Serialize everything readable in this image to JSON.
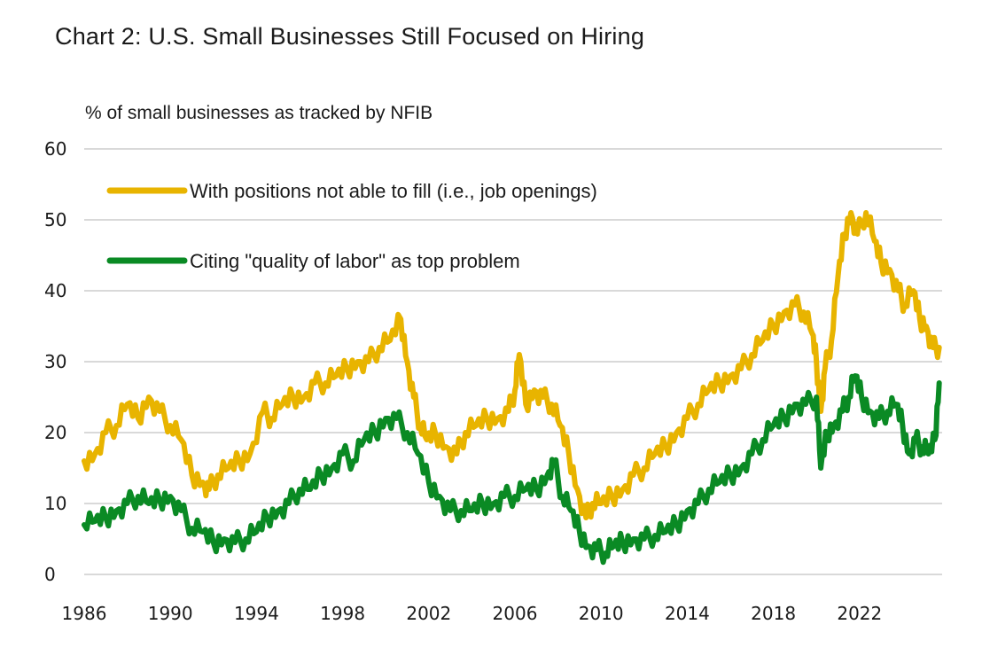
{
  "chart_data": {
    "type": "line",
    "title": "Chart 2: U.S. Small Businesses Still Focused on Hiring",
    "ylabel": "% of small businesses as tracked by NFIB",
    "xlabel": "",
    "ylim": [
      0,
      60
    ],
    "xlim": [
      1986,
      2025.8
    ],
    "yticks": [
      "0",
      "10",
      "20",
      "30",
      "40",
      "50",
      "60"
    ],
    "ytick_values": [
      0,
      10,
      20,
      30,
      40,
      50,
      60
    ],
    "xticks": [
      "1986",
      "1990",
      "1994",
      "1998",
      "2002",
      "2006",
      "2010",
      "2014",
      "2018",
      "2022"
    ],
    "xtick_values": [
      1986,
      1990,
      1994,
      1998,
      2002,
      2006,
      2010,
      2014,
      2018,
      2022
    ],
    "grid": true,
    "legend_position": "top-left",
    "series": [
      {
        "name": "With positions not able to fill (i.e., job openings)",
        "color": "#E8B400",
        "points": [
          [
            1986.0,
            16
          ],
          [
            1986.5,
            17
          ],
          [
            1987.0,
            20
          ],
          [
            1987.5,
            21
          ],
          [
            1988.0,
            24
          ],
          [
            1988.5,
            22
          ],
          [
            1989.0,
            25
          ],
          [
            1989.5,
            23
          ],
          [
            1990.0,
            21
          ],
          [
            1990.5,
            19
          ],
          [
            1991.0,
            14
          ],
          [
            1991.5,
            13
          ],
          [
            1991.8,
            12
          ],
          [
            1992.2,
            14
          ],
          [
            1992.7,
            15
          ],
          [
            1993.2,
            16
          ],
          [
            1993.7,
            17
          ],
          [
            1994.3,
            23
          ],
          [
            1994.7,
            22
          ],
          [
            1995.2,
            24
          ],
          [
            1995.7,
            25
          ],
          [
            1996.2,
            25
          ],
          [
            1996.7,
            27
          ],
          [
            1997.2,
            27
          ],
          [
            1997.7,
            28
          ],
          [
            1998.2,
            29
          ],
          [
            1998.7,
            30
          ],
          [
            1999.2,
            30
          ],
          [
            1999.7,
            32
          ],
          [
            2000.2,
            33
          ],
          [
            2000.7,
            36
          ],
          [
            2001.0,
            30
          ],
          [
            2001.3,
            25
          ],
          [
            2001.6,
            21
          ],
          [
            2001.9,
            19
          ],
          [
            2002.3,
            20
          ],
          [
            2002.8,
            18
          ],
          [
            2003.3,
            17
          ],
          [
            2003.7,
            20
          ],
          [
            2004.2,
            21
          ],
          [
            2004.7,
            22
          ],
          [
            2005.2,
            22
          ],
          [
            2005.7,
            23
          ],
          [
            2006.0,
            26
          ],
          [
            2006.2,
            31
          ],
          [
            2006.5,
            24
          ],
          [
            2006.9,
            26
          ],
          [
            2007.3,
            25
          ],
          [
            2007.7,
            24
          ],
          [
            2008.1,
            21
          ],
          [
            2008.5,
            17
          ],
          [
            2008.9,
            12
          ],
          [
            2009.3,
            8
          ],
          [
            2009.6,
            10
          ],
          [
            2010.0,
            10
          ],
          [
            2010.5,
            11
          ],
          [
            2011.0,
            12
          ],
          [
            2011.5,
            14
          ],
          [
            2012.0,
            15
          ],
          [
            2012.5,
            17
          ],
          [
            2013.0,
            18
          ],
          [
            2013.5,
            20
          ],
          [
            2014.0,
            22
          ],
          [
            2014.5,
            24
          ],
          [
            2015.0,
            26
          ],
          [
            2015.5,
            27
          ],
          [
            2016.0,
            28
          ],
          [
            2016.5,
            29
          ],
          [
            2017.0,
            31
          ],
          [
            2017.5,
            33
          ],
          [
            2018.0,
            35
          ],
          [
            2018.5,
            37
          ],
          [
            2019.0,
            38
          ],
          [
            2019.4,
            37
          ],
          [
            2019.8,
            34
          ],
          [
            2020.0,
            30
          ],
          [
            2020.2,
            23
          ],
          [
            2020.4,
            29
          ],
          [
            2020.7,
            33
          ],
          [
            2021.0,
            42
          ],
          [
            2021.3,
            48
          ],
          [
            2021.6,
            51
          ],
          [
            2021.9,
            48
          ],
          [
            2022.3,
            51
          ],
          [
            2022.7,
            47
          ],
          [
            2023.0,
            44
          ],
          [
            2023.4,
            43
          ],
          [
            2023.8,
            40
          ],
          [
            2024.1,
            38
          ],
          [
            2024.5,
            40
          ],
          [
            2024.8,
            36
          ],
          [
            2025.1,
            35
          ],
          [
            2025.4,
            32
          ],
          [
            2025.7,
            32
          ]
        ]
      },
      {
        "name": "Citing \"quality of labor\" as top problem",
        "color": "#0A8A24",
        "points": [
          [
            1986.0,
            7
          ],
          [
            1986.5,
            7.5
          ],
          [
            1987.0,
            8
          ],
          [
            1987.5,
            9
          ],
          [
            1988.0,
            10
          ],
          [
            1988.5,
            11
          ],
          [
            1989.0,
            10
          ],
          [
            1989.5,
            10.5
          ],
          [
            1990.0,
            11
          ],
          [
            1990.5,
            9
          ],
          [
            1991.0,
            6.5
          ],
          [
            1991.5,
            6
          ],
          [
            1992.0,
            4.5
          ],
          [
            1992.5,
            5
          ],
          [
            1993.0,
            4.5
          ],
          [
            1993.5,
            5
          ],
          [
            1994.0,
            6
          ],
          [
            1994.5,
            8
          ],
          [
            1995.0,
            9
          ],
          [
            1995.5,
            10
          ],
          [
            1996.0,
            12
          ],
          [
            1996.5,
            12
          ],
          [
            1997.0,
            14
          ],
          [
            1997.5,
            15
          ],
          [
            1998.0,
            17
          ],
          [
            1998.5,
            16
          ],
          [
            1999.0,
            19
          ],
          [
            1999.5,
            20
          ],
          [
            2000.0,
            22
          ],
          [
            2000.5,
            22
          ],
          [
            2001.0,
            20
          ],
          [
            2001.5,
            17
          ],
          [
            2002.0,
            13
          ],
          [
            2002.5,
            11
          ],
          [
            2003.0,
            9
          ],
          [
            2003.5,
            9
          ],
          [
            2004.0,
            9
          ],
          [
            2004.5,
            10
          ],
          [
            2005.0,
            10
          ],
          [
            2005.5,
            11
          ],
          [
            2006.0,
            11
          ],
          [
            2006.5,
            12
          ],
          [
            2007.0,
            12
          ],
          [
            2007.5,
            14
          ],
          [
            2007.8,
            16
          ],
          [
            2008.2,
            11
          ],
          [
            2008.6,
            9
          ],
          [
            2009.0,
            6
          ],
          [
            2009.4,
            4
          ],
          [
            2009.8,
            3.5
          ],
          [
            2010.2,
            3
          ],
          [
            2010.6,
            4
          ],
          [
            2011.0,
            4.5
          ],
          [
            2011.5,
            5
          ],
          [
            2012.0,
            5
          ],
          [
            2012.5,
            5.5
          ],
          [
            2013.0,
            6
          ],
          [
            2013.5,
            7
          ],
          [
            2014.0,
            9
          ],
          [
            2014.5,
            10
          ],
          [
            2015.0,
            12
          ],
          [
            2015.5,
            13
          ],
          [
            2016.0,
            14
          ],
          [
            2016.5,
            15
          ],
          [
            2017.0,
            17
          ],
          [
            2017.5,
            19
          ],
          [
            2018.0,
            21
          ],
          [
            2018.5,
            22
          ],
          [
            2019.0,
            24
          ],
          [
            2019.5,
            24
          ],
          [
            2020.0,
            25
          ],
          [
            2020.2,
            15
          ],
          [
            2020.5,
            20
          ],
          [
            2020.8,
            21
          ],
          [
            2021.2,
            23
          ],
          [
            2021.5,
            25
          ],
          [
            2021.8,
            28
          ],
          [
            2022.1,
            25
          ],
          [
            2022.5,
            23
          ],
          [
            2022.9,
            22
          ],
          [
            2023.3,
            23
          ],
          [
            2023.7,
            24
          ],
          [
            2024.0,
            21
          ],
          [
            2024.3,
            17
          ],
          [
            2024.6,
            19
          ],
          [
            2024.9,
            18
          ],
          [
            2025.2,
            17
          ],
          [
            2025.5,
            19
          ],
          [
            2025.7,
            27
          ]
        ]
      }
    ]
  }
}
